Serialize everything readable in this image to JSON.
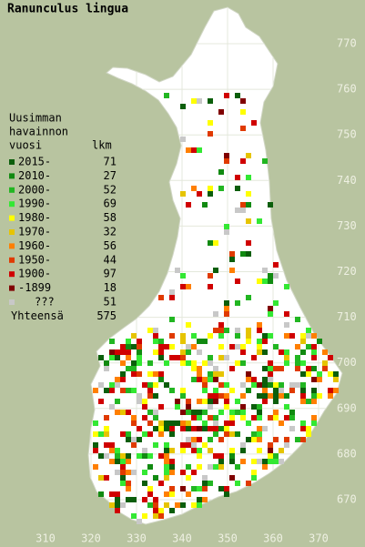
{
  "title": "Ranunculus lingua",
  "legend": {
    "heading": [
      "Uusimman",
      "havainnon",
      "vuosi"
    ],
    "count_heading": "lkm",
    "items": [
      {
        "label": "2015-",
        "count": 71,
        "color": "#0b5e0b"
      },
      {
        "label": "2010-",
        "count": 27,
        "color": "#118a11"
      },
      {
        "label": "2000-",
        "count": 52,
        "color": "#22b622"
      },
      {
        "label": "1990-",
        "count": 69,
        "color": "#33e833"
      },
      {
        "label": "1980-",
        "count": 58,
        "color": "#ffff00"
      },
      {
        "label": "1970-",
        "count": 32,
        "color": "#e6c400"
      },
      {
        "label": "1960-",
        "count": 56,
        "color": "#ff7f00"
      },
      {
        "label": "1950-",
        "count": 44,
        "color": "#e03a00"
      },
      {
        "label": "1900-",
        "count": 97,
        "color": "#d00000"
      },
      {
        "label": "-1899",
        "count": 18,
        "color": "#800000"
      },
      {
        "label": "???",
        "count": 51,
        "color": "#c8c8c8"
      }
    ],
    "total_label": "Yhteensä",
    "total": 575
  },
  "map": {
    "yticks": [
      770,
      760,
      750,
      740,
      730,
      720,
      710,
      700,
      690,
      680,
      670
    ],
    "xticks": [
      310,
      320,
      330,
      340,
      350,
      360,
      370
    ]
  }
}
